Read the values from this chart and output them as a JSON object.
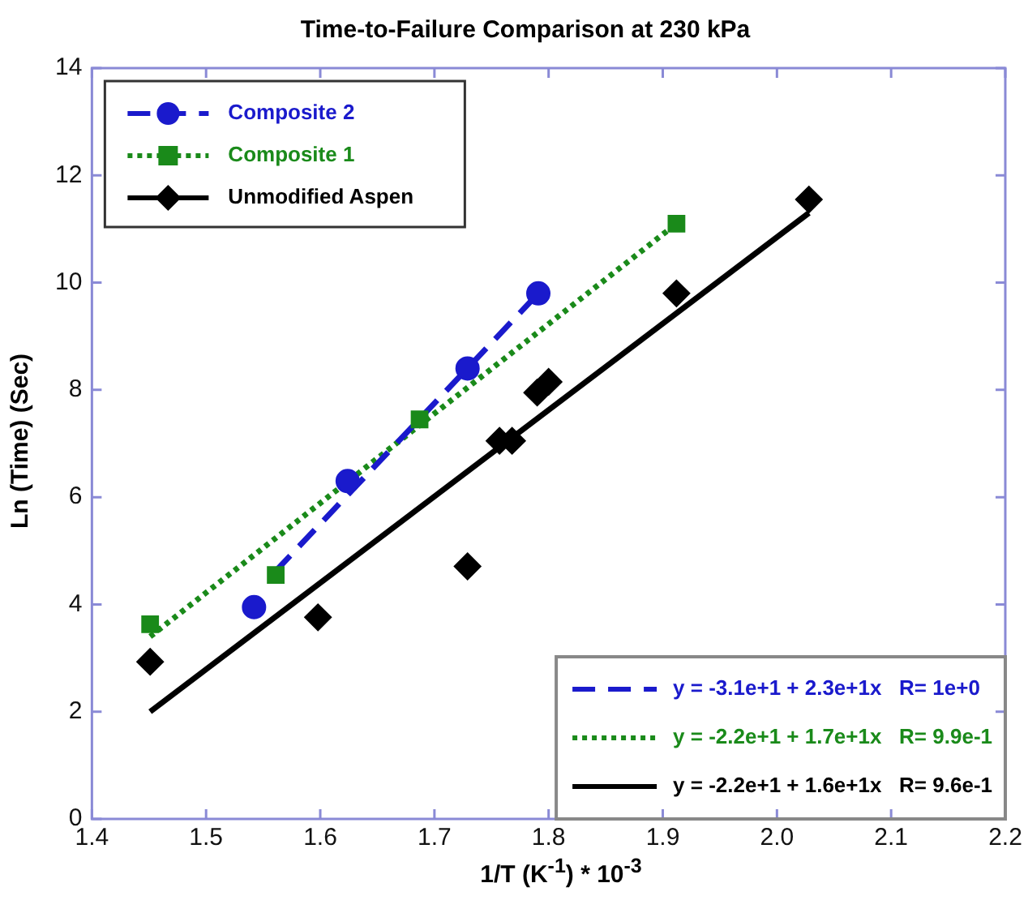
{
  "chart_data": {
    "type": "scatter",
    "title": "Time-to-Failure Comparison at 230 kPa",
    "xlabel": "1/T (K$^{-1}$) * 10$^{-3}$",
    "ylabel": "Ln (Time) (Sec)",
    "xlim": [
      1.4,
      2.2
    ],
    "xticks": [
      1.4,
      1.5,
      1.6,
      1.7,
      1.8,
      1.9,
      {
        "value": 2,
        "label": "2.0"
      },
      2.1,
      2.2
    ],
    "ylim": [
      0,
      14
    ],
    "yticks": [
      0,
      2,
      4,
      6,
      8,
      10,
      12,
      14
    ],
    "grid": false,
    "legend": "top left",
    "series": [
      {
        "name": "Composite 2",
        "color": "#1a1acc",
        "marker": "circle",
        "line_style": "dashed",
        "x": [
          1.542,
          1.624,
          1.729,
          1.791
        ],
        "values": [
          3.95,
          6.3,
          8.4,
          9.8
        ]
      },
      {
        "name": "Composite 1",
        "color": "#1a8a1a",
        "marker": "square",
        "line_style": "dotted",
        "x": [
          1.451,
          1.561,
          1.687,
          1.912
        ],
        "values": [
          3.63,
          4.55,
          7.45,
          11.1
        ]
      },
      {
        "name": "Unmodified Aspen",
        "color": "#000000",
        "marker": "diamond",
        "line_style": "solid",
        "x": [
          1.451,
          1.598,
          1.729,
          1.757,
          1.768,
          1.79,
          1.8,
          1.912,
          2.028
        ],
        "values": [
          2.93,
          3.76,
          4.71,
          7.05,
          7.05,
          7.95,
          8.15,
          9.8,
          11.55
        ]
      },
      {
        "type": "line",
        "color": "#1a1acc",
        "line_style": "dashed",
        "x": [
          1.56,
          1.791
        ],
        "values": [
          4.6,
          9.8
        ]
      },
      {
        "type": "line",
        "color": "#1a8a1a",
        "line_style": "dotted",
        "x": [
          1.451,
          1.912
        ],
        "values": [
          3.4,
          11.1
        ]
      },
      {
        "type": "line",
        "color": "#000000",
        "line_style": "solid",
        "x": [
          1.451,
          2.028
        ],
        "values": [
          2.0,
          11.3
        ]
      }
    ],
    "annotations": [
      "y = -3.1e+1 + 2.3e+1x   R= 1e+0",
      "y = -2.2e+1 + 1.7e+1x   R= 9.9e-1",
      "y = -2.2e+1 + 1.6e+1x   R= 9.6e-1"
    ]
  }
}
